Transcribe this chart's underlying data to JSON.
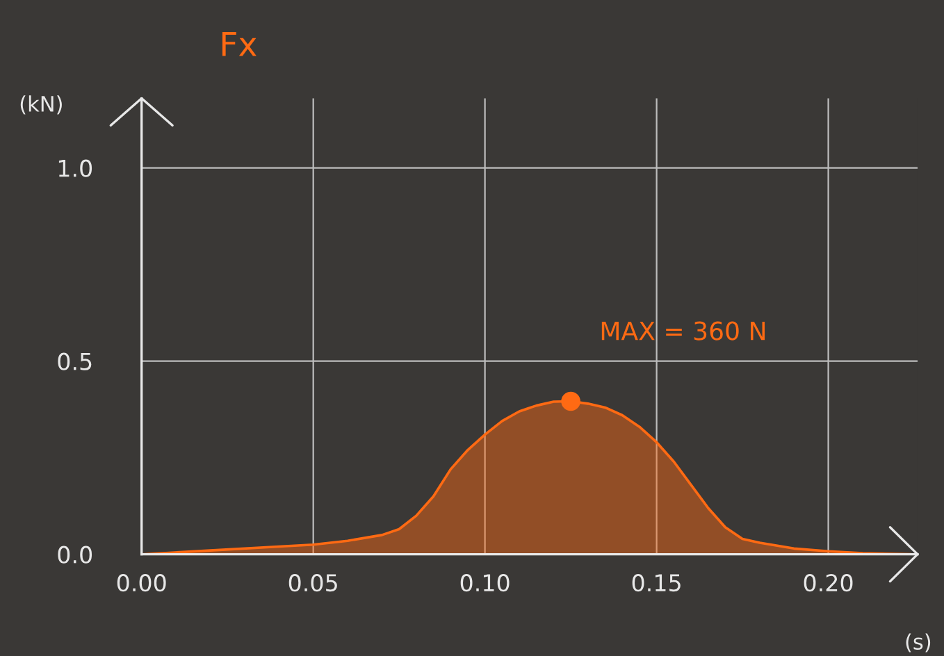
{
  "chart_data": {
    "type": "area",
    "title": "Fx",
    "xlabel": "(s)",
    "ylabel": "(kN)",
    "xlim": [
      0,
      0.226
    ],
    "ylim": [
      0,
      1.18
    ],
    "xticks": [
      {
        "value": 0,
        "label": "0.00"
      },
      {
        "value": 0.05,
        "label": "0.05"
      },
      {
        "value": 0.1,
        "label": "0.10"
      },
      {
        "value": 0.15,
        "label": "0.15"
      },
      {
        "value": 0.2,
        "label": "0.20"
      }
    ],
    "yticks": [
      {
        "value": 0,
        "label": "0.0"
      },
      {
        "value": 0.5,
        "label": "0.5"
      },
      {
        "value": 1.0,
        "label": "1.0"
      }
    ],
    "grid": true,
    "marker": "none",
    "annotations": [
      "MAX = 360 N"
    ],
    "series": [
      {
        "color": "#ff6a13",
        "x": [
          0,
          0.02,
          0.04,
          0.05,
          0.06,
          0.07,
          0.075,
          0.08,
          0.085,
          0.09,
          0.095,
          0.1,
          0.105,
          0.11,
          0.115,
          0.12,
          0.125,
          0.13,
          0.135,
          0.14,
          0.145,
          0.15,
          0.155,
          0.16,
          0.165,
          0.17,
          0.175,
          0.18,
          0.19,
          0.2,
          0.21,
          0.224
        ],
        "values": [
          0,
          0.01,
          0.02,
          0.025,
          0.035,
          0.05,
          0.065,
          0.1,
          0.15,
          0.22,
          0.27,
          0.31,
          0.345,
          0.37,
          0.385,
          0.395,
          0.396,
          0.39,
          0.38,
          0.36,
          0.33,
          0.29,
          0.24,
          0.18,
          0.12,
          0.07,
          0.04,
          0.03,
          0.015,
          0.008,
          0.003,
          0
        ]
      },
      {
        "type": "scatter",
        "color": "#ff6a13",
        "marker": "circle",
        "x": [
          0.125
        ],
        "values": [
          0.396
        ]
      }
    ]
  }
}
